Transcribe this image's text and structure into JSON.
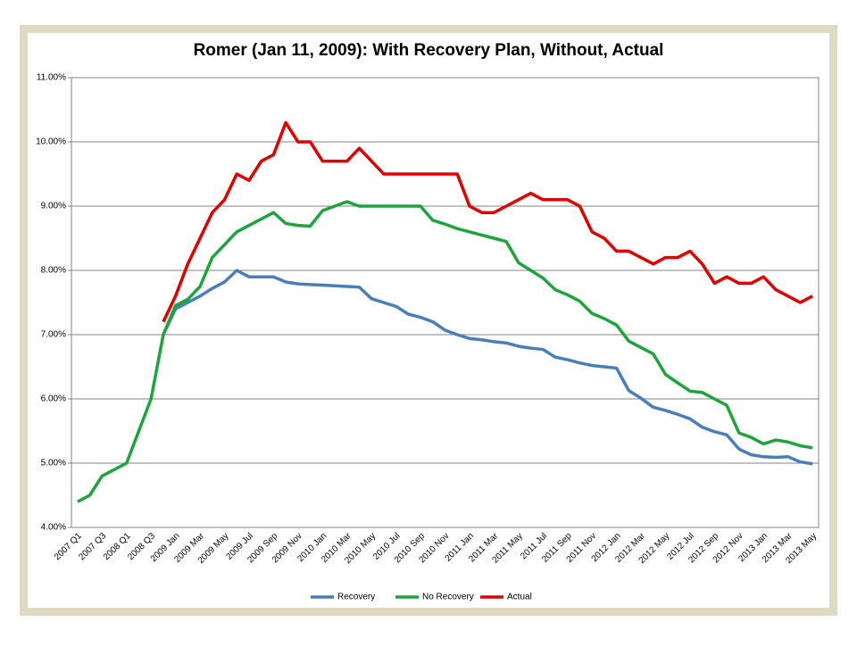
{
  "chart_data": {
    "type": "line",
    "title": "Romer (Jan 11, 2009): With Recovery Plan, Without, Actual",
    "categories": [
      "2007 Q1",
      null,
      "2007 Q3",
      null,
      "2008 Q1",
      null,
      "2008 Q3",
      null,
      "2009 Jan",
      null,
      "2009 Mar",
      null,
      "2009 May",
      null,
      "2009 Jul",
      null,
      "2009 Sep",
      null,
      "2009 Nov",
      null,
      "2010 Jan",
      null,
      "2010 Mar",
      null,
      "2010 May",
      null,
      "2010 Jul",
      null,
      "2010 Sep",
      null,
      "2010 Nov",
      null,
      "2011 Jan",
      null,
      "2011 Mar",
      null,
      "2011 May",
      null,
      "2011 Jul",
      null,
      "2011 Sep",
      null,
      "2011 Nov",
      null,
      "2012 Jan",
      null,
      "2012 Mar",
      null,
      "2012 May",
      null,
      "2012 Jul",
      null,
      "2012 Sep",
      null,
      "2012 Nov",
      null,
      "2013 Jan",
      null,
      "2013 Mar",
      null,
      "2013 May"
    ],
    "series": [
      {
        "name": "Recovery",
        "color": "#4a7ebb",
        "values": [
          null,
          null,
          null,
          null,
          null,
          null,
          null,
          7.0,
          7.4,
          7.5,
          7.6,
          7.72,
          7.82,
          8.0,
          7.9,
          7.9,
          7.9,
          7.82,
          7.79,
          7.78,
          7.77,
          7.76,
          7.75,
          7.74,
          7.56,
          7.5,
          7.44,
          7.32,
          7.27,
          7.2,
          7.07,
          7.0,
          6.94,
          6.92,
          6.89,
          6.87,
          6.82,
          6.79,
          6.77,
          6.65,
          6.61,
          6.56,
          6.52,
          6.5,
          6.48,
          6.13,
          6.01,
          5.87,
          5.82,
          5.76,
          5.69,
          5.56,
          5.49,
          5.44,
          5.22,
          5.13,
          5.1,
          5.09,
          5.1,
          5.02,
          4.99
        ]
      },
      {
        "name": "No Recovery",
        "color": "#1ea43c",
        "values": [
          4.4,
          4.5,
          4.8,
          4.9,
          5.0,
          5.5,
          6.0,
          7.0,
          7.45,
          7.55,
          7.75,
          8.2,
          8.4,
          8.6,
          8.7,
          8.8,
          8.9,
          8.73,
          8.7,
          8.69,
          8.93,
          9.0,
          9.07,
          9.0,
          9.0,
          9.0,
          9.0,
          9.0,
          9.0,
          8.78,
          8.72,
          8.65,
          8.6,
          8.55,
          8.5,
          8.45,
          8.12,
          8.0,
          7.88,
          7.7,
          7.62,
          7.52,
          7.33,
          7.25,
          7.15,
          6.9,
          6.8,
          6.7,
          6.38,
          6.25,
          6.12,
          6.1,
          6.0,
          5.9,
          5.47,
          5.4,
          5.3,
          5.36,
          5.33,
          5.27,
          5.24
        ]
      },
      {
        "name": "Actual",
        "color": "#e00000",
        "values": [
          null,
          null,
          null,
          null,
          null,
          null,
          null,
          7.2,
          7.6,
          8.1,
          8.5,
          8.9,
          9.1,
          9.5,
          9.4,
          9.7,
          9.8,
          10.3,
          10.0,
          10.0,
          9.7,
          9.7,
          9.7,
          9.9,
          9.7,
          9.5,
          9.5,
          9.5,
          9.5,
          9.5,
          9.5,
          9.5,
          9.0,
          8.9,
          8.9,
          9.0,
          9.1,
          9.2,
          9.1,
          9.1,
          9.1,
          9.0,
          8.6,
          8.5,
          8.3,
          8.3,
          8.2,
          8.1,
          8.2,
          8.2,
          8.3,
          8.1,
          7.8,
          7.9,
          7.8,
          7.8,
          7.9,
          7.7,
          7.6,
          7.5,
          7.6
        ]
      }
    ],
    "ylim": [
      4,
      11
    ],
    "yticks": [
      {
        "value": 4,
        "label": "4.00%"
      },
      {
        "value": 5,
        "label": "5.00%"
      },
      {
        "value": 6,
        "label": "6.00%"
      },
      {
        "value": 7,
        "label": "7.00%"
      },
      {
        "value": 8,
        "label": "8.00%"
      },
      {
        "value": 9,
        "label": "9.00%"
      },
      {
        "value": 10,
        "label": "10.00%"
      },
      {
        "value": 11,
        "label": "11.00%"
      }
    ],
    "grid": true,
    "legend": "bottom"
  }
}
